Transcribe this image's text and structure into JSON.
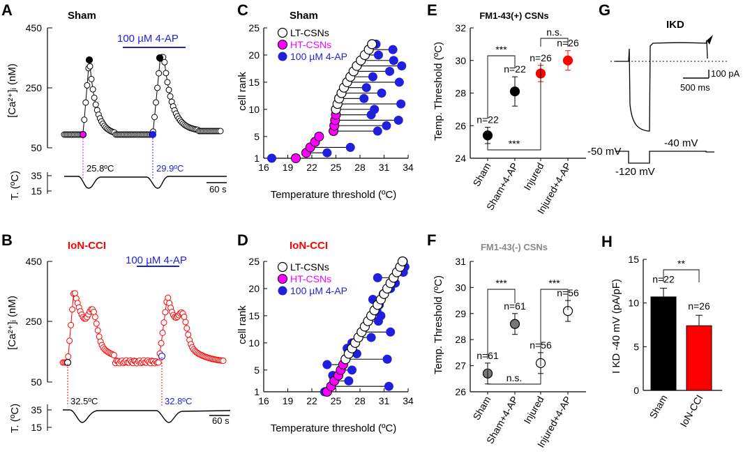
{
  "colors": {
    "magenta": "#ff00ff",
    "blue": "#1f1fdc",
    "red": "#ff0000",
    "gray": "#777777",
    "black": "#000000"
  },
  "labels": {
    "A": "A",
    "B": "B",
    "C": "C",
    "D": "D",
    "E": "E",
    "F": "F",
    "G": "G",
    "H": "H"
  },
  "panelA": {
    "title": "Sham",
    "drug": "100 µM 4-AP",
    "ylabel": "[Ca²⁺]ᵢ (nM)",
    "yticks": [
      "450",
      "250",
      "50"
    ],
    "tlabel": "T. (ºC)",
    "tticks": [
      "35",
      "15"
    ],
    "thr1": "25.8ºC",
    "thr2": "29.9ºC",
    "scale": "60 s"
  },
  "panelB": {
    "title": "IoN-CCI",
    "drug": "100 µM 4-AP",
    "ylabel": "[Ca²⁺]ᵢ (nM)",
    "yticks": [
      "450",
      "250",
      "50"
    ],
    "tlabel": "T. (ºC)",
    "tticks": [
      "35",
      "15"
    ],
    "thr1": "32.5ºC",
    "thr2": "32.8ºC",
    "scale": "60 s"
  },
  "chart_data": [
    {
      "id": "C",
      "type": "scatter",
      "title": "Sham",
      "xlabel": "Temperature threshold (ºC)",
      "ylabel": "cell rank",
      "xlim": [
        16,
        34
      ],
      "ylim": [
        1,
        25
      ],
      "xticks": [
        16,
        19,
        22,
        25,
        28,
        31,
        34
      ],
      "yticks": [
        1,
        5,
        10,
        15,
        20,
        25
      ],
      "legend": [
        "LT-CSNs",
        "HT-CSNs",
        "100 µM 4-AP"
      ],
      "lt": [
        [
          25.0,
          10
        ],
        [
          25.2,
          11
        ],
        [
          25.4,
          12
        ],
        [
          25.7,
          13
        ],
        [
          26.0,
          14
        ],
        [
          26.4,
          15
        ],
        [
          26.8,
          16
        ],
        [
          27.2,
          17
        ],
        [
          27.6,
          18
        ],
        [
          28.1,
          19
        ],
        [
          28.6,
          20
        ],
        [
          29.1,
          21
        ],
        [
          29.5,
          22
        ]
      ],
      "ht": [
        [
          20.0,
          1
        ],
        [
          21.3,
          2
        ],
        [
          21.8,
          3
        ],
        [
          22.4,
          4
        ],
        [
          22.9,
          5
        ],
        [
          24.7,
          6
        ],
        [
          24.8,
          7
        ],
        [
          24.9,
          8
        ],
        [
          25.0,
          9
        ]
      ],
      "ap": [
        [
          17.0,
          1
        ],
        [
          23.9,
          2
        ],
        [
          26.8,
          3
        ],
        [
          30.2,
          6
        ],
        [
          31.3,
          7
        ],
        [
          32.8,
          8
        ],
        [
          29.4,
          9
        ],
        [
          29.8,
          10
        ],
        [
          33.1,
          11
        ],
        [
          28.5,
          12
        ],
        [
          30.7,
          13
        ],
        [
          28.8,
          14
        ],
        [
          32.9,
          15
        ],
        [
          29.6,
          16
        ],
        [
          31.7,
          17
        ],
        [
          33.2,
          18
        ],
        [
          32.2,
          19
        ],
        [
          30.3,
          20
        ],
        [
          32.1,
          21
        ],
        [
          30.0,
          22
        ]
      ]
    },
    {
      "id": "D",
      "type": "scatter",
      "title": "IoN-CCI",
      "xlabel": "Temperature threshold (ºC)",
      "ylabel": "cell rank",
      "xlim": [
        16,
        34
      ],
      "ylim": [
        1,
        25
      ],
      "xticks": [
        16,
        19,
        22,
        25,
        28,
        31,
        34
      ],
      "yticks": [
        1,
        5,
        10,
        15,
        20,
        25
      ],
      "legend": [
        "LT-CSNs",
        "HT-CSNs",
        "100 µM 4-AP"
      ],
      "lt": [
        [
          26.2,
          7
        ],
        [
          26.6,
          8
        ],
        [
          27.0,
          9
        ],
        [
          27.4,
          10
        ],
        [
          27.8,
          11
        ],
        [
          28.2,
          12
        ],
        [
          28.6,
          13
        ],
        [
          29.0,
          14
        ],
        [
          29.4,
          15
        ],
        [
          29.8,
          16
        ],
        [
          30.2,
          17
        ],
        [
          30.6,
          18
        ],
        [
          31.0,
          19
        ],
        [
          31.4,
          20
        ],
        [
          31.8,
          21
        ],
        [
          32.2,
          22
        ],
        [
          32.6,
          23
        ],
        [
          33.0,
          24
        ],
        [
          33.3,
          25
        ]
      ],
      "ht": [
        [
          23.9,
          1
        ],
        [
          24.4,
          2
        ],
        [
          24.8,
          3
        ],
        [
          25.3,
          4
        ],
        [
          25.6,
          5
        ],
        [
          25.9,
          6
        ]
      ],
      "ap": [
        [
          23.6,
          1
        ],
        [
          31.6,
          2
        ],
        [
          26.6,
          3
        ],
        [
          24.6,
          4
        ],
        [
          27.0,
          5
        ],
        [
          23.9,
          6
        ],
        [
          31.4,
          7
        ],
        [
          27.6,
          8
        ],
        [
          26.4,
          9
        ],
        [
          27.0,
          10
        ],
        [
          29.4,
          11
        ],
        [
          31.8,
          12
        ],
        [
          28.6,
          13
        ],
        [
          30.3,
          14
        ],
        [
          30.6,
          15
        ],
        [
          30.1,
          16
        ],
        [
          30.4,
          17
        ],
        [
          29.6,
          18
        ],
        [
          30.9,
          19
        ],
        [
          31.8,
          20
        ],
        [
          32.4,
          21
        ],
        [
          30.2,
          22
        ],
        [
          33.4,
          23
        ],
        [
          33.6,
          24
        ],
        [
          33.4,
          25
        ]
      ]
    },
    {
      "id": "E",
      "type": "errorbar",
      "title": "FM1-43(+) CSNs",
      "ylabel": "Temp. Threshold (ºC)",
      "ylim": [
        24,
        32
      ],
      "yticks": [
        24,
        26,
        28,
        30,
        32
      ],
      "categories": [
        "Sham",
        "Sham+4-AP",
        "Injured",
        "Injured+4-AP"
      ],
      "values": [
        25.4,
        28.1,
        29.2,
        30.0
      ],
      "errors": [
        0.5,
        0.9,
        0.5,
        0.6
      ],
      "n": [
        "n=22",
        "n=22",
        "n=26",
        "n=26"
      ],
      "sig": [
        "***",
        "n.s.",
        "***"
      ]
    },
    {
      "id": "F",
      "type": "errorbar",
      "title": "FM1-43(-) CSNs",
      "ylabel": "Temp. Threshold (ºC)",
      "ylim": [
        26,
        31
      ],
      "yticks": [
        26,
        27,
        28,
        29,
        30,
        31
      ],
      "categories": [
        "Sham",
        "Sham+4-AP",
        "Injured",
        "Injured+4-AP"
      ],
      "values": [
        26.7,
        28.6,
        27.1,
        29.1
      ],
      "errors": [
        0.4,
        0.4,
        0.4,
        0.4
      ],
      "n": [
        "n=61",
        "n=61",
        "n=56",
        "n=56"
      ],
      "sig": [
        "***",
        "***",
        "n.s."
      ]
    },
    {
      "id": "H",
      "type": "bar",
      "ylabel": "I KD -40 mV (pA/pF)",
      "ylim": [
        0,
        15
      ],
      "yticks": [
        0,
        5,
        10,
        15
      ],
      "categories": [
        "Sham",
        "IoN-CCI"
      ],
      "values": [
        10.7,
        7.4
      ],
      "errors": [
        1.0,
        1.2
      ],
      "n": [
        "n=22",
        "n=26"
      ],
      "sig": "**"
    }
  ],
  "panelG": {
    "title": "IKD",
    "v1": "-50 mV",
    "v2": "-120 mV",
    "v3": "-40 mV",
    "scaleI": "100 pA",
    "scaleT": "500 ms"
  }
}
